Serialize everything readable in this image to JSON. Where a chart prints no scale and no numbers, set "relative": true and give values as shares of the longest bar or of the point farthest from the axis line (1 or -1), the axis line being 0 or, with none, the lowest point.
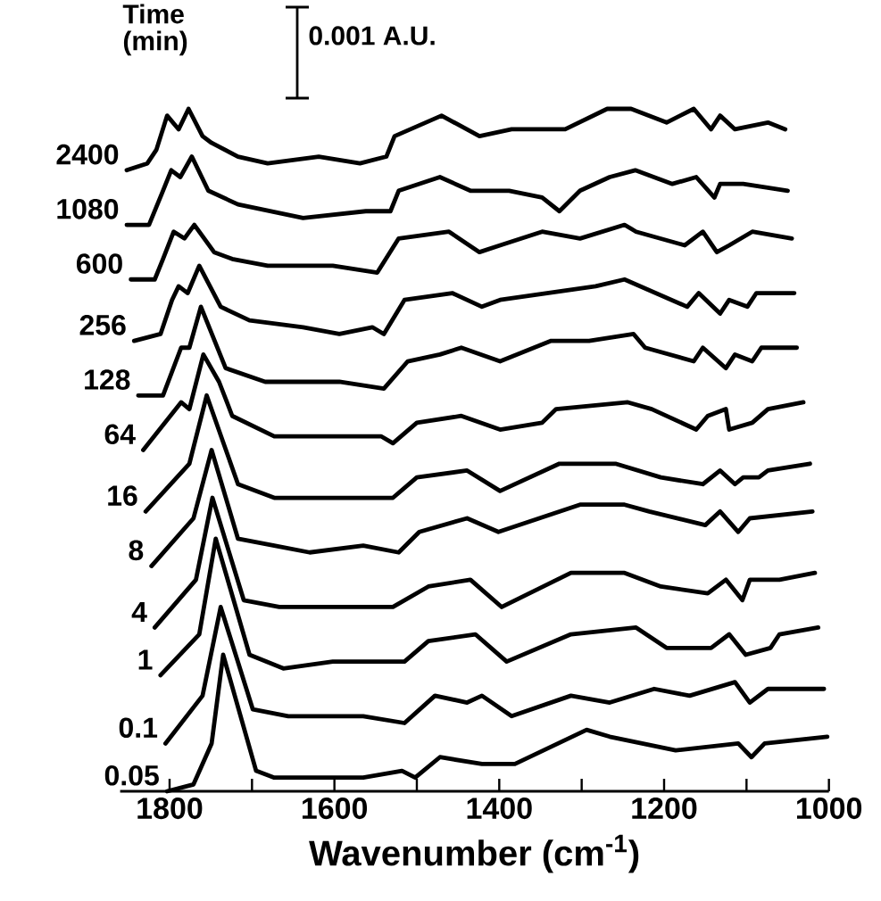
{
  "chart_data": {
    "type": "line",
    "relative": true,
    "xlabel": "Wavenumber (cm$^{-1}$)",
    "legend_title": "Time (min)",
    "annotations": [
      "0.001 A.U."
    ],
    "xlim": [
      1860,
      1000
    ],
    "xticks": [
      1800,
      {
        "value": 1700,
        "label": null
      },
      1600,
      {
        "value": 1500,
        "label": null
      },
      1400,
      {
        "value": 1300,
        "label": null
      },
      1200,
      {
        "value": 1100,
        "label": null
      },
      1000
    ],
    "series": [
      {
        "name": "2400",
        "color": "#000000",
        "x": [
          1852,
          1827,
          1816,
          1803,
          1789,
          1777,
          1760,
          1749,
          1717,
          1681,
          1619,
          1569,
          1537,
          1527,
          1470,
          1424,
          1385,
          1320,
          1269,
          1240,
          1197,
          1164,
          1143,
          1132,
          1114,
          1074,
          1053
        ],
        "values": [
          0.91,
          0.92,
          0.94,
          0.99,
          0.97,
          1.0,
          0.96,
          0.95,
          0.93,
          0.92,
          0.93,
          0.92,
          0.93,
          0.96,
          0.99,
          0.96,
          0.97,
          0.97,
          1.0,
          1.0,
          0.98,
          1.0,
          0.97,
          0.99,
          0.97,
          0.98,
          0.97
        ]
      },
      {
        "name": "1080",
        "color": "#000000",
        "x": [
          1852,
          1825,
          1808,
          1798,
          1787,
          1773,
          1753,
          1717,
          1638,
          1562,
          1532,
          1522,
          1472,
          1435,
          1388,
          1348,
          1327,
          1302,
          1266,
          1235,
          1190,
          1161,
          1139,
          1132,
          1104,
          1050
        ],
        "values": [
          0.83,
          0.83,
          0.88,
          0.91,
          0.9,
          0.93,
          0.88,
          0.86,
          0.84,
          0.85,
          0.85,
          0.88,
          0.9,
          0.88,
          0.88,
          0.87,
          0.85,
          0.88,
          0.9,
          0.91,
          0.89,
          0.9,
          0.87,
          0.89,
          0.89,
          0.88
        ]
      },
      {
        "name": "600",
        "color": "#000000",
        "x": [
          1847,
          1818,
          1808,
          1795,
          1782,
          1770,
          1746,
          1724,
          1681,
          1602,
          1548,
          1522,
          1461,
          1424,
          1399,
          1348,
          1302,
          1248,
          1234,
          1175,
          1153,
          1136,
          1121,
          1093,
          1045
        ],
        "values": [
          0.75,
          0.75,
          0.78,
          0.82,
          0.81,
          0.83,
          0.79,
          0.78,
          0.77,
          0.77,
          0.76,
          0.81,
          0.82,
          0.79,
          0.8,
          0.82,
          0.81,
          0.83,
          0.82,
          0.8,
          0.82,
          0.79,
          0.8,
          0.82,
          0.81
        ]
      },
      {
        "name": "256",
        "color": "#000000",
        "x": [
          1843,
          1811,
          1797,
          1789,
          1778,
          1764,
          1738,
          1703,
          1638,
          1594,
          1554,
          1540,
          1515,
          1457,
          1421,
          1399,
          1342,
          1283,
          1248,
          1172,
          1158,
          1132,
          1121,
          1099,
          1088,
          1042
        ],
        "values": [
          0.66,
          0.67,
          0.72,
          0.74,
          0.73,
          0.77,
          0.71,
          0.69,
          0.68,
          0.67,
          0.68,
          0.67,
          0.72,
          0.73,
          0.71,
          0.72,
          0.73,
          0.74,
          0.75,
          0.71,
          0.73,
          0.7,
          0.72,
          0.71,
          0.73,
          0.73
        ]
      },
      {
        "name": "128",
        "color": "#000000",
        "x": [
          1838,
          1808,
          1786,
          1776,
          1762,
          1732,
          1684,
          1594,
          1540,
          1511,
          1472,
          1446,
          1399,
          1337,
          1291,
          1237,
          1223,
          1164,
          1153,
          1125,
          1114,
          1093,
          1082,
          1039
        ],
        "values": [
          0.58,
          0.58,
          0.65,
          0.65,
          0.71,
          0.62,
          0.6,
          0.6,
          0.59,
          0.63,
          0.64,
          0.65,
          0.63,
          0.66,
          0.66,
          0.67,
          0.65,
          0.63,
          0.65,
          0.62,
          0.64,
          0.63,
          0.65,
          0.65
        ]
      },
      {
        "name": "64",
        "color": "#000000",
        "x": [
          1832,
          1786,
          1776,
          1759,
          1740,
          1724,
          1673,
          1591,
          1543,
          1529,
          1500,
          1446,
          1399,
          1348,
          1331,
          1244,
          1215,
          1161,
          1147,
          1125,
          1121,
          1093,
          1074,
          1031
        ],
        "values": [
          0.5,
          0.57,
          0.56,
          0.64,
          0.6,
          0.55,
          0.52,
          0.52,
          0.52,
          0.51,
          0.54,
          0.55,
          0.53,
          0.54,
          0.56,
          0.57,
          0.56,
          0.53,
          0.55,
          0.56,
          0.53,
          0.54,
          0.56,
          0.57
        ]
      },
      {
        "name": "16",
        "color": "#000000",
        "x": [
          1829,
          1776,
          1755,
          1717,
          1673,
          1602,
          1529,
          1500,
          1439,
          1399,
          1327,
          1305,
          1259,
          1204,
          1153,
          1132,
          1114,
          1104,
          1085,
          1074,
          1023
        ],
        "values": [
          0.41,
          0.48,
          0.58,
          0.45,
          0.43,
          0.43,
          0.43,
          0.46,
          0.47,
          0.44,
          0.48,
          0.48,
          0.48,
          0.46,
          0.45,
          0.47,
          0.45,
          0.46,
          0.46,
          0.47,
          0.48
        ]
      },
      {
        "name": "8",
        "color": "#000000",
        "x": [
          1822,
          1771,
          1749,
          1717,
          1673,
          1630,
          1565,
          1522,
          1497,
          1439,
          1401,
          1302,
          1248,
          1218,
          1150,
          1132,
          1110,
          1096,
          1020
        ],
        "values": [
          0.33,
          0.4,
          0.5,
          0.37,
          0.36,
          0.35,
          0.36,
          0.35,
          0.38,
          0.4,
          0.38,
          0.42,
          0.42,
          0.41,
          0.39,
          0.41,
          0.38,
          0.4,
          0.41
        ]
      },
      {
        "name": "4",
        "color": "#000000",
        "x": [
          1818,
          1768,
          1748,
          1710,
          1667,
          1602,
          1529,
          1486,
          1435,
          1397,
          1313,
          1248,
          1204,
          1147,
          1125,
          1105,
          1096,
          1060,
          1017
        ],
        "values": [
          0.24,
          0.31,
          0.43,
          0.28,
          0.27,
          0.27,
          0.27,
          0.3,
          0.31,
          0.27,
          0.32,
          0.32,
          0.3,
          0.29,
          0.31,
          0.28,
          0.31,
          0.31,
          0.32
        ]
      },
      {
        "name": "1",
        "color": "#000000",
        "x": [
          1811,
          1764,
          1744,
          1703,
          1662,
          1602,
          1515,
          1486,
          1429,
          1391,
          1313,
          1234,
          1197,
          1143,
          1121,
          1101,
          1071,
          1060,
          1013
        ],
        "values": [
          0.17,
          0.23,
          0.37,
          0.2,
          0.18,
          0.19,
          0.19,
          0.22,
          0.23,
          0.19,
          0.23,
          0.24,
          0.21,
          0.21,
          0.23,
          0.2,
          0.21,
          0.23,
          0.24
        ]
      },
      {
        "name": "0.1",
        "color": "#000000",
        "x": [
          1805,
          1760,
          1738,
          1699,
          1656,
          1565,
          1515,
          1478,
          1439,
          1421,
          1385,
          1313,
          1266,
          1212,
          1169,
          1114,
          1096,
          1074,
          1006
        ],
        "values": [
          0.07,
          0.14,
          0.27,
          0.12,
          0.11,
          0.11,
          0.1,
          0.14,
          0.13,
          0.14,
          0.11,
          0.14,
          0.13,
          0.15,
          0.14,
          0.16,
          0.13,
          0.15,
          0.15
        ]
      },
      {
        "name": "0.05",
        "color": "#000000",
        "x": [
          1803,
          1771,
          1749,
          1735,
          1695,
          1673,
          1565,
          1518,
          1502,
          1472,
          1421,
          1381,
          1294,
          1266,
          1186,
          1110,
          1094,
          1078,
          1002
        ],
        "values": [
          0.0,
          0.01,
          0.07,
          0.2,
          0.03,
          0.02,
          0.02,
          0.03,
          0.02,
          0.05,
          0.04,
          0.04,
          0.09,
          0.08,
          0.06,
          0.07,
          0.05,
          0.07,
          0.08
        ]
      }
    ]
  }
}
